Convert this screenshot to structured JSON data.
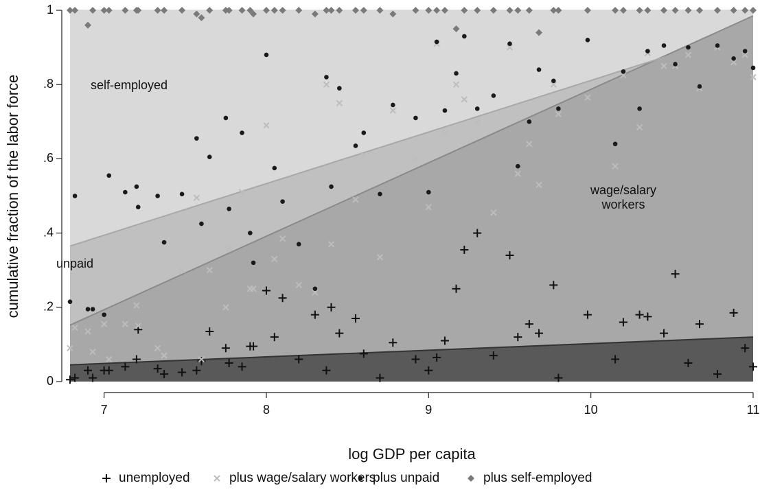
{
  "chart_data": {
    "type": "scatter-fit-area",
    "xlabel": "log GDP per capita",
    "ylabel": "cumulative fraction of the labor force",
    "xlim": [
      6.79,
      11
    ],
    "ylim": [
      0,
      1
    ],
    "xticks": [
      7,
      8,
      9,
      10,
      11
    ],
    "yticks": [
      0,
      {
        "value": 0.2,
        "label": ".2"
      },
      {
        "value": 0.4,
        "label": ".4"
      },
      {
        "value": 0.6,
        "label": ".6"
      },
      {
        "value": 0.8,
        "label": ".8"
      },
      1
    ],
    "annotations": [
      {
        "lines": [
          "self-employed"
        ]
      },
      {
        "lines": [
          "unpaid"
        ]
      },
      {
        "lines": [
          "wage/salary",
          "workers"
        ]
      }
    ],
    "x": [
      6.79,
      6.82,
      6.9,
      6.93,
      7.0,
      7.03,
      7.13,
      7.2,
      7.21,
      7.33,
      7.37,
      7.48,
      7.57,
      7.6,
      7.65,
      7.75,
      7.77,
      7.85,
      7.9,
      7.92,
      8.0,
      8.05,
      8.1,
      8.2,
      8.3,
      8.37,
      8.4,
      8.45,
      8.55,
      8.6,
      8.7,
      8.78,
      8.92,
      9.0,
      9.05,
      9.1,
      9.17,
      9.22,
      9.3,
      9.4,
      9.5,
      9.55,
      9.62,
      9.68,
      9.77,
      9.8,
      9.98,
      10.15,
      10.2,
      10.3,
      10.35,
      10.45,
      10.52,
      10.6,
      10.67,
      10.78,
      10.88,
      10.95,
      11.0
    ],
    "series": [
      {
        "name": "unemployed",
        "marker": "plus",
        "color": "#111111",
        "area_color": "#595959",
        "edge_color": "#333333",
        "fit": [
          0.045,
          0.12
        ],
        "values": [
          0.005,
          0.01,
          0.03,
          0.01,
          0.03,
          0.03,
          0.04,
          0.06,
          0.14,
          0.035,
          0.02,
          0.025,
          0.03,
          0.055,
          0.135,
          0.09,
          0.05,
          0.04,
          0.095,
          0.095,
          0.245,
          0.12,
          0.225,
          0.06,
          0.18,
          0.03,
          0.2,
          0.13,
          0.17,
          0.075,
          0.01,
          0.105,
          0.06,
          0.03,
          0.065,
          0.11,
          0.25,
          0.355,
          0.4,
          0.07,
          0.34,
          0.12,
          0.155,
          0.13,
          0.26,
          0.01,
          0.18,
          0.06,
          0.16,
          0.18,
          0.175,
          0.13,
          0.29,
          0.05,
          0.155,
          0.02,
          0.185,
          0.09,
          0.04
        ]
      },
      {
        "name": "plus wage/salary workers",
        "marker": "cross",
        "color": "#bdbdbd",
        "area_color": "#a8a8a8",
        "edge_color": "#8a8a8a",
        "fit": [
          0.152,
          0.985
        ],
        "values": [
          0.09,
          0.145,
          0.135,
          0.08,
          0.155,
          0.06,
          0.155,
          0.205,
          0.15,
          0.09,
          0.07,
          0.3,
          0.495,
          0.06,
          0.3,
          0.2,
          0.36,
          0.51,
          0.25,
          0.25,
          0.69,
          0.33,
          0.385,
          0.26,
          0.24,
          0.8,
          0.37,
          0.75,
          0.49,
          0.61,
          0.335,
          0.73,
          0.6,
          0.47,
          0.91,
          0.67,
          0.8,
          0.76,
          0.7,
          0.455,
          0.9,
          0.56,
          0.64,
          0.53,
          0.8,
          0.72,
          0.765,
          0.58,
          0.825,
          0.685,
          0.885,
          0.85,
          0.85,
          0.88,
          0.79,
          0.9,
          0.86,
          0.88,
          0.82
        ]
      },
      {
        "name": "plus unpaid",
        "marker": "dot",
        "color": "#1a1a1a",
        "area_color": "#c0c0c0",
        "edge_color": "#a8a8a8",
        "fit": [
          0.365,
          0.95
        ],
        "values": [
          0.215,
          0.5,
          0.195,
          0.195,
          0.18,
          0.555,
          0.51,
          0.525,
          0.47,
          0.5,
          0.375,
          0.505,
          0.655,
          0.425,
          0.605,
          0.71,
          0.465,
          0.67,
          0.4,
          0.32,
          0.88,
          0.575,
          0.485,
          0.37,
          0.25,
          0.82,
          0.525,
          0.79,
          0.635,
          0.67,
          0.505,
          0.745,
          0.71,
          0.51,
          0.915,
          0.73,
          0.83,
          0.93,
          0.735,
          0.77,
          0.91,
          0.58,
          0.7,
          0.84,
          0.81,
          0.735,
          0.92,
          0.64,
          0.835,
          0.735,
          0.89,
          0.905,
          0.855,
          0.9,
          0.795,
          0.905,
          0.87,
          0.89,
          0.845
        ]
      },
      {
        "name": "plus self-employed",
        "marker": "diamond",
        "color": "#7a7a7a",
        "area_color": "#d9d9d9",
        "edge_color": "#d9d9d9",
        "fit": [
          1,
          1
        ],
        "values": [
          1,
          1,
          0.96,
          1,
          1,
          1,
          1,
          1,
          1,
          1,
          1,
          1,
          0.99,
          0.98,
          1,
          1,
          1,
          1,
          1,
          0.99,
          1,
          1,
          1,
          1,
          0.99,
          1,
          1,
          1,
          1,
          1,
          1,
          0.99,
          1,
          1,
          1,
          1,
          0.95,
          1,
          1,
          1,
          1,
          1,
          1,
          0.94,
          1,
          1,
          1,
          1,
          1,
          1,
          1,
          1,
          1,
          1,
          1,
          1,
          1,
          1,
          1
        ]
      }
    ]
  }
}
